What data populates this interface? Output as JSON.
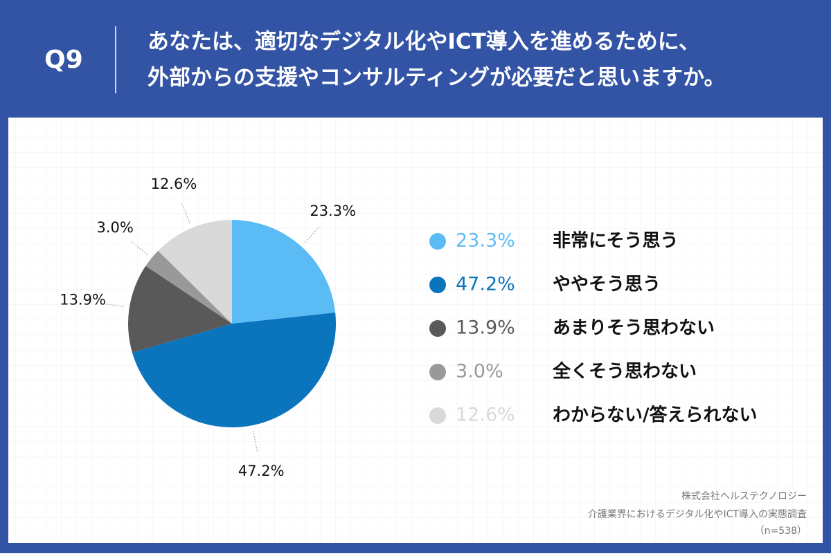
{
  "header": {
    "label": "Q9",
    "question": [
      "あなたは、適切なデジタル化やICT導入を進めるために、",
      "外部からの支援やコンサルティングが必要だと思いますか。"
    ]
  },
  "chart_data": {
    "type": "pie",
    "categories": [
      "非常にそう思う",
      "ややそう思う",
      "あまりそう思わない",
      "全くそう思わない",
      "わからない/答えられない"
    ],
    "values": [
      23.3,
      47.2,
      13.9,
      3.0,
      12.6
    ],
    "value_labels": [
      "23.3%",
      "47.2%",
      "13.9%",
      "3.0%",
      "12.6%"
    ],
    "colors": [
      "#5bbcf5",
      "#0a74bd",
      "#595959",
      "#999999",
      "#d9d9d9"
    ],
    "legend": "right"
  },
  "source": [
    "株式会社ヘルステクノロジー",
    "介護業界におけるデジタル化やICT導入の実態調査",
    "（n=538）"
  ]
}
